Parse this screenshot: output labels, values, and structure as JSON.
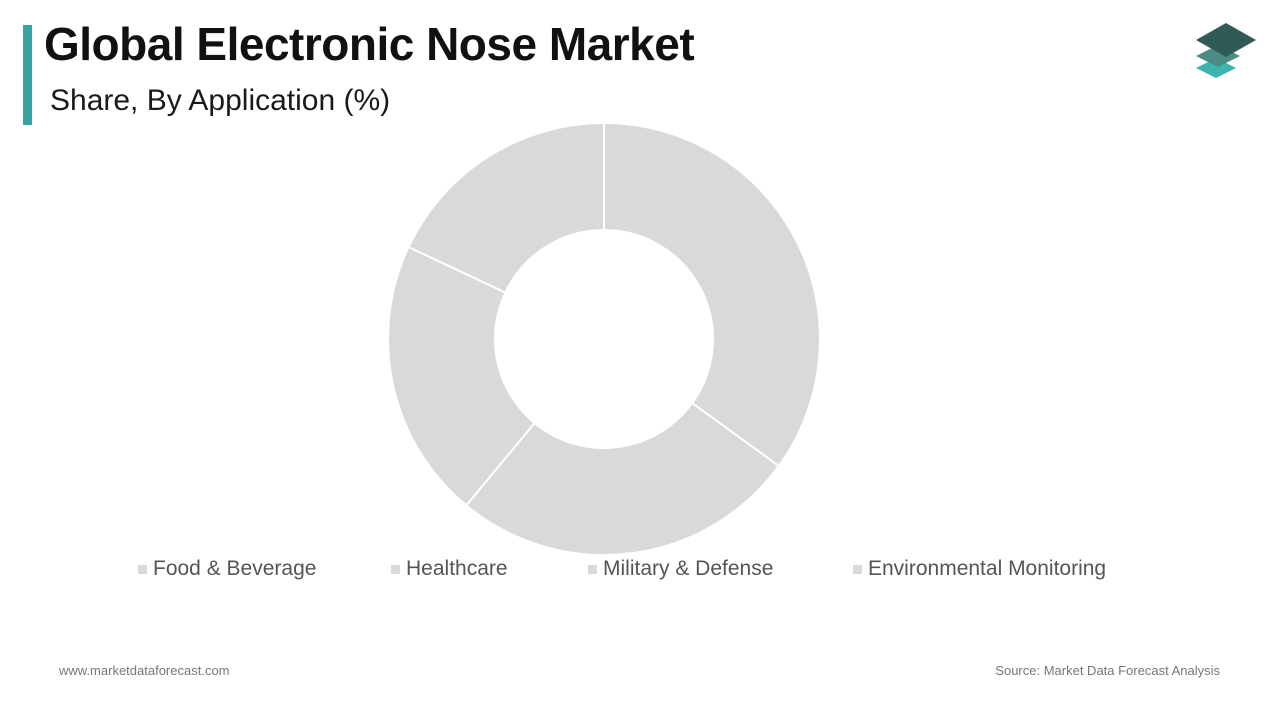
{
  "header": {
    "title": "Global Electronic Nose Market",
    "subtitle": "Share, By Application (%)"
  },
  "colors": {
    "accent": "#3aa3a1",
    "slice": "#d9d9d9",
    "slice_border": "#ffffff",
    "logo_top": "#2f5a55",
    "logo_mid": "#4d8c84",
    "logo_bottom": "#3fb3ad"
  },
  "icons": {
    "logo": "stacked-layers-icon"
  },
  "chart_data": {
    "type": "pie",
    "variant": "donut",
    "title": "Global Electronic Nose Market",
    "subtitle": "Share, By Application (%)",
    "categories": [
      "Food & Beverage",
      "Healthcare",
      "Military & Defense",
      "Environmental Monitoring"
    ],
    "values": [
      35.0,
      26.0,
      21.0,
      18.0
    ],
    "legend_position": "bottom",
    "data_labels": false
  },
  "legend": {
    "items": [
      "Food & Beverage",
      "Healthcare",
      "Military & Defense",
      "Environmental Monitoring"
    ]
  },
  "footer": {
    "website": "www.marketdataforecast.com",
    "source": "Source: Market Data Forecast Analysis"
  }
}
